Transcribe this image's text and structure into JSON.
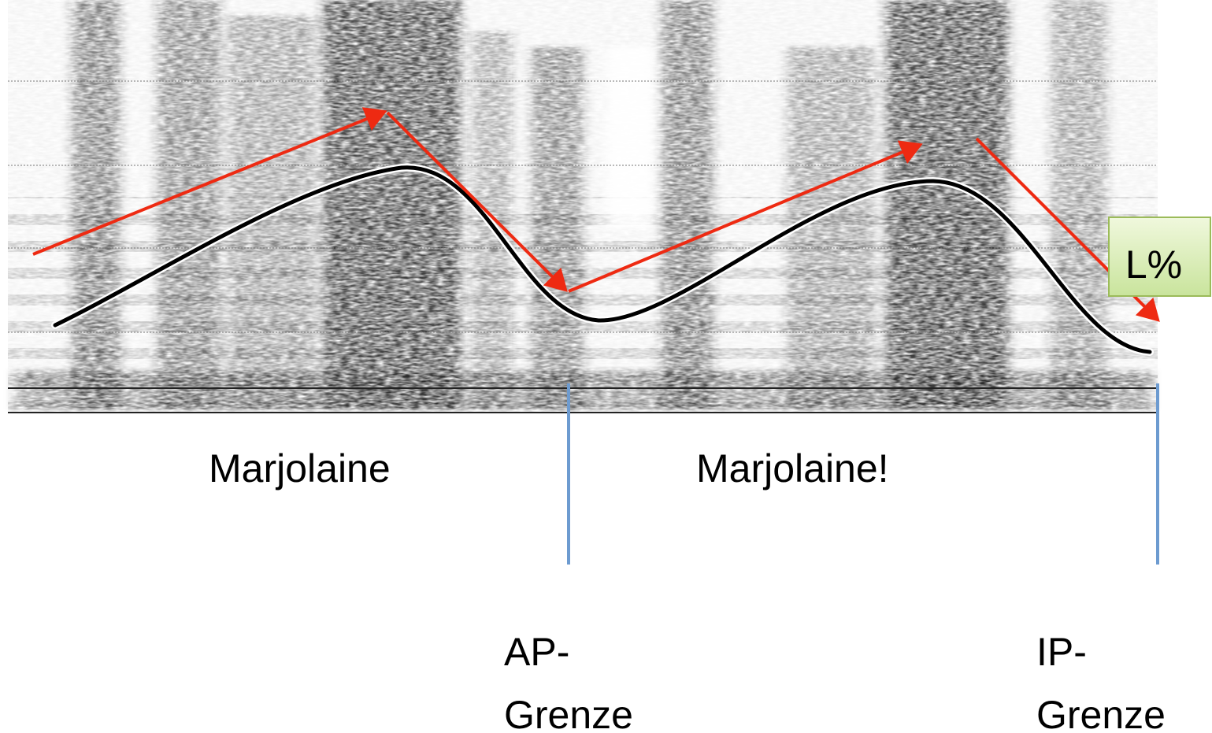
{
  "words": [
    "Marjolaine",
    "Marjolaine!"
  ],
  "boundaries": [
    {
      "lines": [
        "AP-",
        "Grenze"
      ]
    },
    {
      "lines": [
        "IP-",
        "Grenze"
      ]
    }
  ],
  "tone_label": "L%"
}
